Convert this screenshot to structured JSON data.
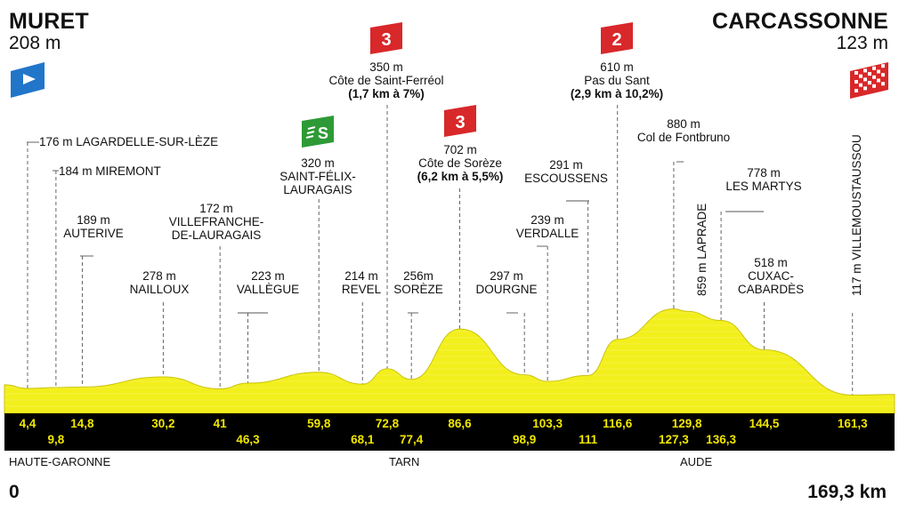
{
  "start": {
    "name": "MURET",
    "altitude": "208 m"
  },
  "finish": {
    "name": "CARCASSONNE",
    "altitude": "123 m"
  },
  "distance": {
    "start": "0",
    "end": "169,3 km"
  },
  "regions": [
    "HAUTE-GARONNE",
    "TARN",
    "AUDE"
  ],
  "climbs": [
    {
      "category": "3",
      "altitude": "350 m",
      "name": "Côte de Saint-Ferréol",
      "detail": "(1,7 km à 7%)"
    },
    {
      "category": "3",
      "altitude": "702 m",
      "name": "Côte de Sorèze",
      "detail": "(6,2 km à 5,5%)"
    },
    {
      "category": "2",
      "altitude": "610 m",
      "name": "Pas du Sant",
      "detail": "(2,9 km à 10,2%)"
    }
  ],
  "sprint": {
    "altitude": "320 m",
    "name1": "SAINT-FÉLIX-",
    "name2": "LAURAGAIS"
  },
  "places": [
    {
      "alt": "176 m",
      "name": "LAGARDELLE-SUR-LÈZE"
    },
    {
      "alt": "184 m",
      "name": "MIREMONT"
    },
    {
      "alt": "189 m",
      "name": "AUTERIVE"
    },
    {
      "alt": "278 m",
      "name": "NAILLOUX"
    },
    {
      "alt": "172 m",
      "name1": "VILLEFRANCHE-",
      "name2": "DE-LAURAGAIS"
    },
    {
      "alt": "223 m",
      "name": "VALLÈGUE"
    },
    {
      "alt": "214 m",
      "name": "REVEL"
    },
    {
      "alt": "256m",
      "name": "SORÈZE"
    },
    {
      "alt": "297 m",
      "name": "DOURGNE"
    },
    {
      "alt": "239 m",
      "name": "VERDALLE"
    },
    {
      "alt": "291 m",
      "name": "ESCOUSSENS"
    },
    {
      "alt": "880 m",
      "name": "Col de Fontbruno"
    },
    {
      "alt": "778 m",
      "name": "LES MARTYS"
    },
    {
      "alt": "518 m",
      "name1": "CUXAC-",
      "name2": "CABARDÈS"
    }
  ],
  "rotated": [
    {
      "text": "859 m LAPRADE"
    },
    {
      "text": "117 m VILLEMOUSTAUSSOU"
    }
  ],
  "colors": {
    "profile": "#f3ef1c",
    "band": "#000000",
    "km_text": "#f0e600",
    "cat3": "#d8282a",
    "cat2": "#d8282a",
    "sprint": "#2e9a36",
    "start_flag": "#2176c9"
  },
  "chart_data": {
    "type": "area",
    "x_km_labels": [
      "4,4",
      "9,8",
      "14,8",
      "30,2",
      "41",
      "46,3",
      "59,8",
      "68,1",
      "72,8",
      "77,4",
      "86,6",
      "98,9",
      "103,3",
      "111",
      "116,6",
      "127,3",
      "129,8",
      "136,3",
      "144,5",
      "161,3"
    ],
    "x": [
      0,
      4.4,
      9.8,
      14.8,
      30.2,
      41,
      46.3,
      59.8,
      68.1,
      72.8,
      77.4,
      86.6,
      98.9,
      103.3,
      111,
      116.6,
      127.3,
      129.8,
      136.3,
      144.5,
      161.3,
      169.3
    ],
    "y": [
      208,
      176,
      184,
      189,
      278,
      172,
      223,
      320,
      214,
      350,
      256,
      702,
      297,
      239,
      291,
      610,
      880,
      859,
      778,
      518,
      117,
      123
    ],
    "xlim": [
      0,
      169.3
    ],
    "ylim": [
      100,
      900
    ],
    "xlabel": "",
    "ylabel": ""
  }
}
